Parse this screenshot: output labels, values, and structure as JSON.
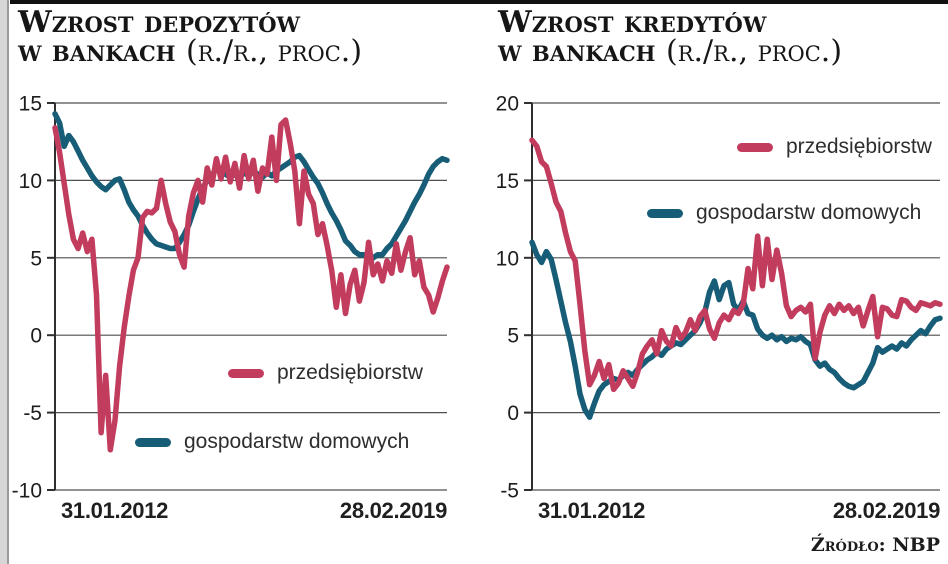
{
  "source_label": "Źródło: NBP",
  "chart_data": [
    {
      "type": "line",
      "full_title": "Wzrost depozytów w bankach (r./r., proc.)",
      "title_line1": "Wzrost depozytów",
      "title_line2": "w bankach",
      "title_suffix": "(r./r., proc.)",
      "x_start_label": "31.01.2012",
      "x_end_label": "28.02.2019",
      "x_note": "monthly points from 31.01.2012 to 28.02.2019, year-over-year percent",
      "ylim": [
        -10,
        15
      ],
      "y_ticks": [
        15,
        10,
        5,
        0,
        -5,
        -10
      ],
      "grid": true,
      "legend_position": "inside plot, red entry center-right, teal entry lower-left",
      "series": [
        {
          "name": "przedsiębiorstw",
          "color": "#c23c5e",
          "values": [
            13.4,
            11.8,
            9.8,
            7.8,
            6.2,
            5.6,
            6.6,
            5.4,
            6.2,
            2.6,
            -6.3,
            -2.6,
            -7.4,
            -5.5,
            -2.0,
            0.5,
            2.5,
            4.2,
            5.0,
            7.6,
            8.0,
            7.9,
            8.2,
            10.0,
            8.5,
            7.3,
            6.7,
            5.2,
            4.4,
            7.7,
            9.2,
            10.0,
            8.6,
            10.8,
            9.7,
            11.4,
            10.1,
            11.5,
            9.9,
            11.1,
            9.5,
            11.6,
            10.1,
            11.3,
            9.3,
            10.8,
            10.4,
            12.8,
            10.0,
            13.6,
            13.9,
            12.4,
            10.6,
            7.2,
            10.6,
            9.1,
            8.5,
            6.5,
            7.2,
            5.8,
            4.2,
            1.8,
            3.9,
            1.4,
            3.3,
            4.2,
            2.2,
            3.4,
            6.0,
            3.9,
            4.6,
            3.5,
            4.8,
            4.0,
            5.9,
            4.2,
            5.4,
            6.3,
            3.9,
            4.8,
            3.1,
            2.6,
            1.5,
            2.4,
            3.5,
            4.4
          ]
        },
        {
          "name": "gospodarstw domowych",
          "color": "#175d77",
          "values": [
            14.3,
            13.7,
            12.2,
            12.9,
            12.5,
            11.9,
            11.3,
            10.8,
            10.3,
            9.9,
            9.6,
            9.4,
            9.7,
            10.0,
            10.1,
            9.4,
            8.6,
            8.1,
            7.7,
            7.1,
            6.6,
            6.2,
            5.9,
            5.8,
            5.7,
            5.6,
            5.6,
            6.0,
            6.5,
            7.1,
            8.0,
            8.8,
            9.5,
            10.0,
            10.3,
            10.8,
            10.5,
            10.4,
            10.2,
            10.4,
            10.2,
            10.5,
            10.3,
            10.6,
            10.4,
            10.2,
            10.5,
            10.3,
            10.6,
            10.8,
            11.0,
            11.2,
            11.5,
            11.6,
            11.2,
            10.7,
            10.2,
            9.8,
            9.2,
            8.5,
            7.9,
            7.4,
            6.8,
            6.1,
            5.8,
            5.4,
            5.2,
            5.2,
            5.0,
            5.0,
            5.2,
            5.2,
            5.6,
            5.9,
            6.4,
            6.9,
            7.4,
            8.0,
            8.6,
            9.1,
            9.7,
            10.4,
            10.9,
            11.2,
            11.4,
            11.3
          ]
        }
      ]
    },
    {
      "type": "line",
      "full_title": "Wzrost kredytów w bankach (r./r., proc.)",
      "title_line1": "Wzrost kredytów",
      "title_line2": "w bankach",
      "title_suffix": "(r./r., proc.)",
      "x_start_label": "31.01.2012",
      "x_end_label": "28.02.2019",
      "x_note": "monthly points from 31.01.2012 to 28.02.2019, year-over-year percent",
      "ylim": [
        -5,
        20
      ],
      "y_ticks": [
        20,
        15,
        10,
        5,
        0,
        -5
      ],
      "grid": true,
      "legend_position": "inside plot, upper right, stacked",
      "series": [
        {
          "name": "przedsiębiorstw",
          "color": "#c23c5e",
          "values": [
            17.6,
            17.2,
            16.2,
            15.9,
            14.8,
            13.6,
            13.0,
            11.6,
            10.4,
            9.8,
            7.0,
            4.0,
            1.8,
            2.4,
            3.3,
            2.2,
            3.1,
            1.5,
            1.9,
            2.7,
            2.2,
            1.7,
            2.6,
            3.8,
            4.3,
            4.7,
            3.8,
            5.3,
            4.6,
            4.3,
            5.5,
            4.8,
            5.2,
            6.0,
            5.3,
            6.2,
            6.6,
            5.4,
            4.8,
            5.8,
            6.3,
            6.0,
            6.6,
            6.4,
            7.0,
            9.3,
            8.0,
            11.4,
            8.2,
            11.2,
            8.6,
            10.5,
            9.0,
            6.9,
            6.2,
            6.6,
            6.8,
            6.5,
            7.0,
            3.5,
            5.2,
            6.3,
            6.9,
            6.4,
            7.0,
            6.6,
            6.9,
            6.4,
            6.8,
            5.6,
            6.6,
            7.5,
            4.9,
            6.8,
            6.7,
            6.3,
            6.2,
            7.3,
            7.2,
            6.8,
            6.6,
            7.1,
            7.0,
            6.9,
            7.1,
            7.0
          ]
        },
        {
          "name": "gospodarstw domowych",
          "color": "#175d77",
          "values": [
            11.0,
            10.2,
            9.7,
            10.4,
            9.9,
            8.6,
            7.2,
            5.8,
            4.6,
            3.0,
            1.2,
            0.2,
            -0.3,
            0.6,
            1.4,
            1.8,
            2.0,
            2.2,
            2.1,
            2.4,
            2.6,
            2.4,
            2.8,
            3.1,
            3.4,
            3.6,
            3.9,
            3.7,
            4.1,
            4.3,
            4.5,
            4.4,
            4.7,
            5.0,
            5.3,
            5.8,
            6.5,
            7.8,
            8.5,
            7.3,
            8.2,
            8.4,
            7.0,
            6.6,
            7.2,
            6.4,
            6.3,
            5.4,
            5.0,
            4.8,
            5.0,
            4.7,
            4.9,
            4.6,
            4.8,
            4.7,
            4.9,
            4.6,
            4.4,
            3.4,
            3.0,
            3.2,
            2.8,
            2.6,
            2.2,
            1.9,
            1.7,
            1.6,
            1.8,
            2.0,
            2.6,
            3.2,
            4.2,
            3.9,
            4.1,
            4.3,
            4.1,
            4.5,
            4.3,
            4.7,
            5.0,
            5.3,
            5.1,
            5.6,
            6.0,
            6.1
          ]
        }
      ]
    }
  ]
}
